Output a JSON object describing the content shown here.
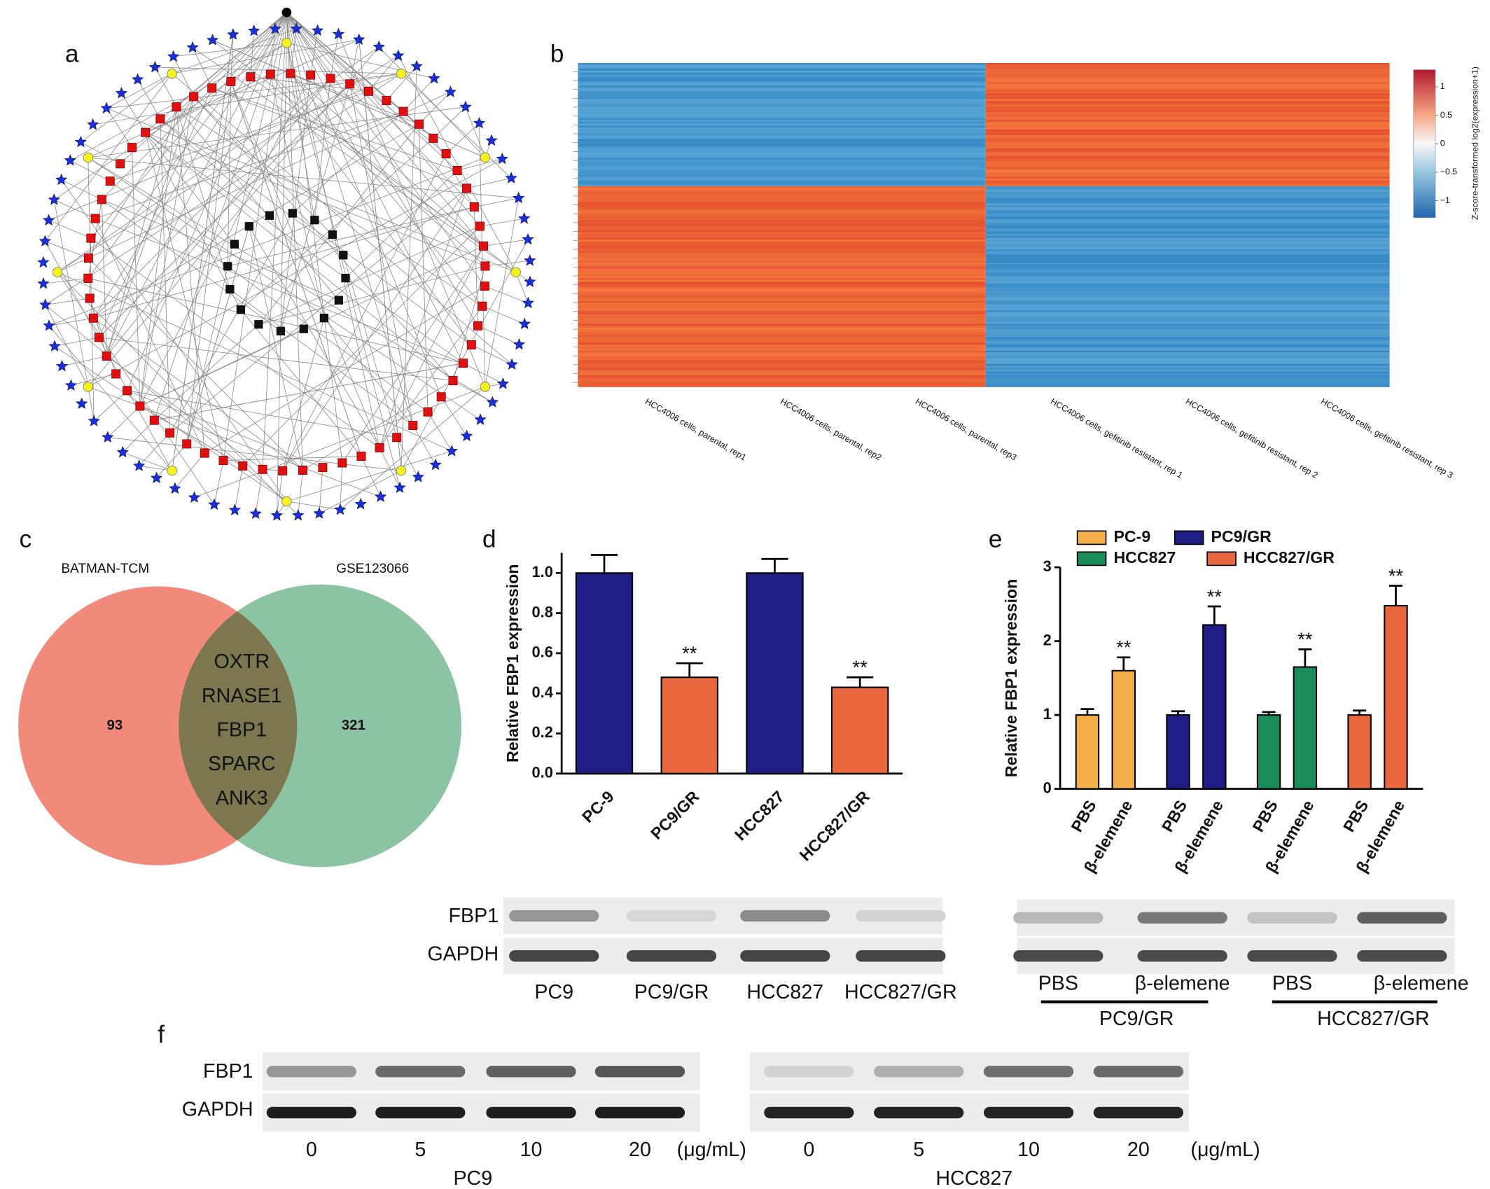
{
  "panel_labels": [
    "a",
    "b",
    "c",
    "d",
    "e",
    "f"
  ],
  "heatmap": {
    "columns": [
      "HCC4006 cells, parental, rep1",
      "HCC4006 cells, parental, rep2",
      "HCC4006 cells, parental, rep3",
      "HCC4006 cells, gefitinib resistant, rep 1",
      "HCC4006 cells, gefitinib resistant, rep 2",
      "HCC4006 cells, gefitinib resistant, rep 3"
    ],
    "colorbar": {
      "label": "Z-score-transformed log2(expression+1)",
      "lim": [
        -1.3,
        1.3
      ],
      "ticks": [
        1,
        0.5,
        0,
        {
          "value": -0.5,
          "label": "−0.5"
        },
        {
          "value": -1,
          "label": "−1"
        }
      ]
    }
  },
  "venn": {
    "sets": [
      {
        "name": "BATMAN-TCM",
        "count": 93,
        "color": "#f28a7c"
      },
      {
        "name": "GSE123066",
        "count": 321,
        "color": "#8cc4a3"
      }
    ],
    "overlap": [
      "OXTR",
      "RNASE1",
      "FBP1",
      "SPARC",
      "ANK3"
    ],
    "overlap_color": "#7d7750"
  },
  "chart_data": [
    {
      "type": "bar",
      "ylabel": "Relative FBP1 expression",
      "categories": [
        "PC-9",
        "PC9/GR",
        "HCC827",
        "HCC827/GR"
      ],
      "values": [
        1.0,
        0.48,
        1.0,
        0.43
      ],
      "errors": [
        0.09,
        0.07,
        0.07,
        0.05
      ],
      "colors": [
        "#1e1e86",
        "#e8673e",
        "#1e1e86",
        "#e8673e"
      ],
      "significance": [
        null,
        "**",
        null,
        "**"
      ],
      "ylim": [
        0,
        1.1
      ],
      "yticks": [
        {
          "value": 0,
          "label": "0.0"
        },
        {
          "value": 0.2,
          "label": "0.2"
        },
        {
          "value": 0.4,
          "label": "0.4"
        },
        {
          "value": 0.6,
          "label": "0.6"
        },
        {
          "value": 0.8,
          "label": "0.8"
        },
        {
          "value": 1,
          "label": "1.0"
        }
      ]
    },
    {
      "type": "grouped_bar",
      "ylabel": "Relative FBP1 expression",
      "categories": [
        "PBS",
        "β-elemene"
      ],
      "series": [
        {
          "name": "PC-9",
          "color": "#f5b04c",
          "values": [
            1.0,
            1.6
          ],
          "errors": [
            0.08,
            0.18
          ],
          "significance": [
            null,
            "**"
          ]
        },
        {
          "name": "PC9/GR",
          "color": "#1e1e86",
          "values": [
            1.0,
            2.22
          ],
          "errors": [
            0.05,
            0.25
          ],
          "significance": [
            null,
            "**"
          ]
        },
        {
          "name": "HCC827",
          "color": "#1a8c5a",
          "values": [
            1.0,
            1.65
          ],
          "errors": [
            0.04,
            0.24
          ],
          "significance": [
            null,
            "**"
          ]
        },
        {
          "name": "HCC827/GR",
          "color": "#e8673e",
          "values": [
            1.0,
            2.48
          ],
          "errors": [
            0.06,
            0.27
          ],
          "significance": [
            null,
            "**"
          ]
        }
      ],
      "ylim": [
        0,
        3
      ],
      "yticks": [
        0,
        1,
        2,
        3
      ],
      "legend": "top"
    }
  ],
  "blots": [
    {
      "rows": [
        "FBP1",
        "GAPDH"
      ],
      "lanes": [
        "PC9",
        "PC9/GR",
        "HCC827",
        "HCC827/GR"
      ]
    },
    {
      "lanes": [
        "PBS",
        "β-elemene",
        "PBS",
        "β-elemene"
      ],
      "groups": [
        "PC9/GR",
        "HCC827/GR"
      ]
    },
    {
      "rows": [
        "FBP1",
        "GAPDH"
      ],
      "lanes": [
        "0",
        "5",
        "10",
        "20"
      ],
      "unit": "(μg/mL)",
      "cell": "PC9"
    },
    {
      "lanes": [
        "0",
        "5",
        "10",
        "20"
      ],
      "unit": "(μg/mL)",
      "cell": "HCC827"
    }
  ]
}
